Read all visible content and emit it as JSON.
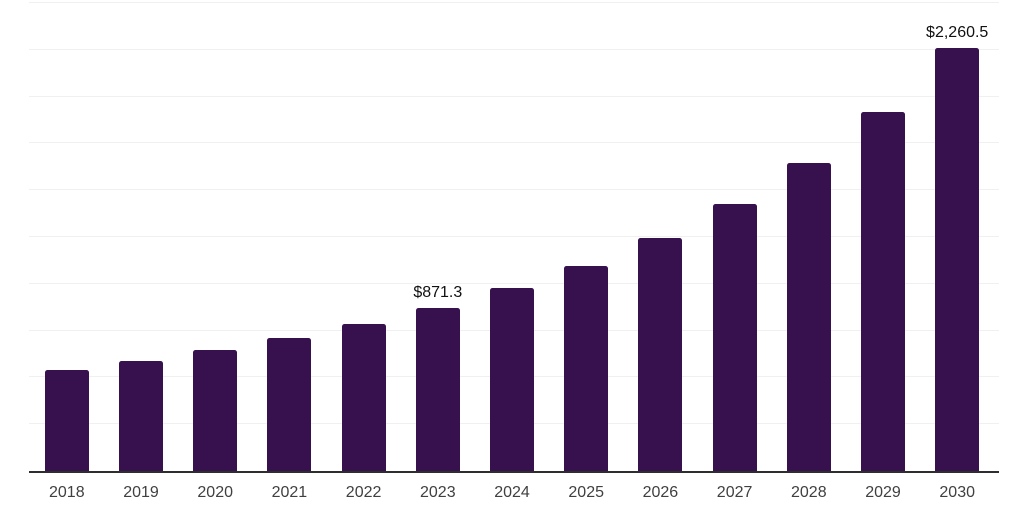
{
  "chart_data": {
    "type": "bar",
    "title": "",
    "xlabel": "",
    "ylabel": "",
    "categories": [
      "2018",
      "2019",
      "2020",
      "2021",
      "2022",
      "2023",
      "2024",
      "2025",
      "2026",
      "2027",
      "2028",
      "2029",
      "2030"
    ],
    "values": [
      541,
      589,
      647,
      713,
      787,
      871.3,
      980,
      1096,
      1243,
      1426,
      1645,
      1917,
      2260.5
    ],
    "data_labels": {
      "2023": "$871.3",
      "2030": "$2,260.5"
    },
    "ylim": [
      0,
      2500
    ],
    "gridline_step": 250,
    "grid": true,
    "legend_position": "none",
    "colors": {
      "bar": "#36114d",
      "gridline": "#f0f0f0",
      "axis_line": "#2e2e2e",
      "tick_label": "#404040",
      "value_label": "#111111"
    }
  }
}
